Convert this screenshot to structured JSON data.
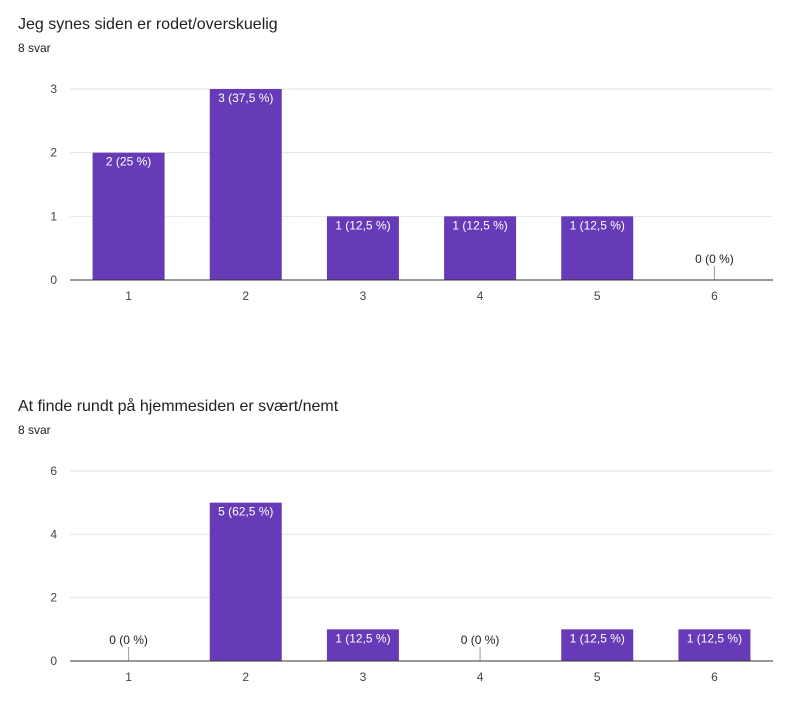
{
  "charts": [
    {
      "title": "Jeg synes siden er rodet/overskuelig",
      "responses": "8 svar"
    },
    {
      "title": "At finde rundt på hjemmesiden er svært/nemt",
      "responses": "8 svar"
    }
  ],
  "colors": {
    "bar": "#673ab7",
    "grid": "#e6e6e6",
    "axis": "#333333",
    "label_inside": "#ffffff",
    "label_outside": "#202124"
  },
  "chart_data": [
    {
      "type": "bar",
      "title": "Jeg synes siden er rodet/overskuelig",
      "subtitle": "8 svar",
      "categories": [
        "1",
        "2",
        "3",
        "4",
        "5",
        "6"
      ],
      "values": [
        2,
        3,
        1,
        1,
        1,
        0
      ],
      "data_labels": [
        "2 (25 %)",
        "3 (37,5 %)",
        "1 (12,5 %)",
        "1 (12,5 %)",
        "1 (12,5 %)",
        "0 (0 %)"
      ],
      "yticks": [
        "0",
        "1",
        "2",
        "3"
      ],
      "ylim": [
        0,
        3
      ],
      "grid": true
    },
    {
      "type": "bar",
      "title": "At finde rundt på hjemmesiden er svært/nemt",
      "subtitle": "8 svar",
      "categories": [
        "1",
        "2",
        "3",
        "4",
        "5",
        "6"
      ],
      "values": [
        0,
        5,
        1,
        0,
        1,
        1
      ],
      "data_labels": [
        "0 (0 %)",
        "5 (62,5 %)",
        "1 (12,5 %)",
        "0 (0 %)",
        "1 (12,5 %)",
        "1 (12,5 %)"
      ],
      "yticks": [
        "0",
        "2",
        "4",
        "6"
      ],
      "ylim": [
        0,
        6
      ],
      "grid": true
    }
  ]
}
